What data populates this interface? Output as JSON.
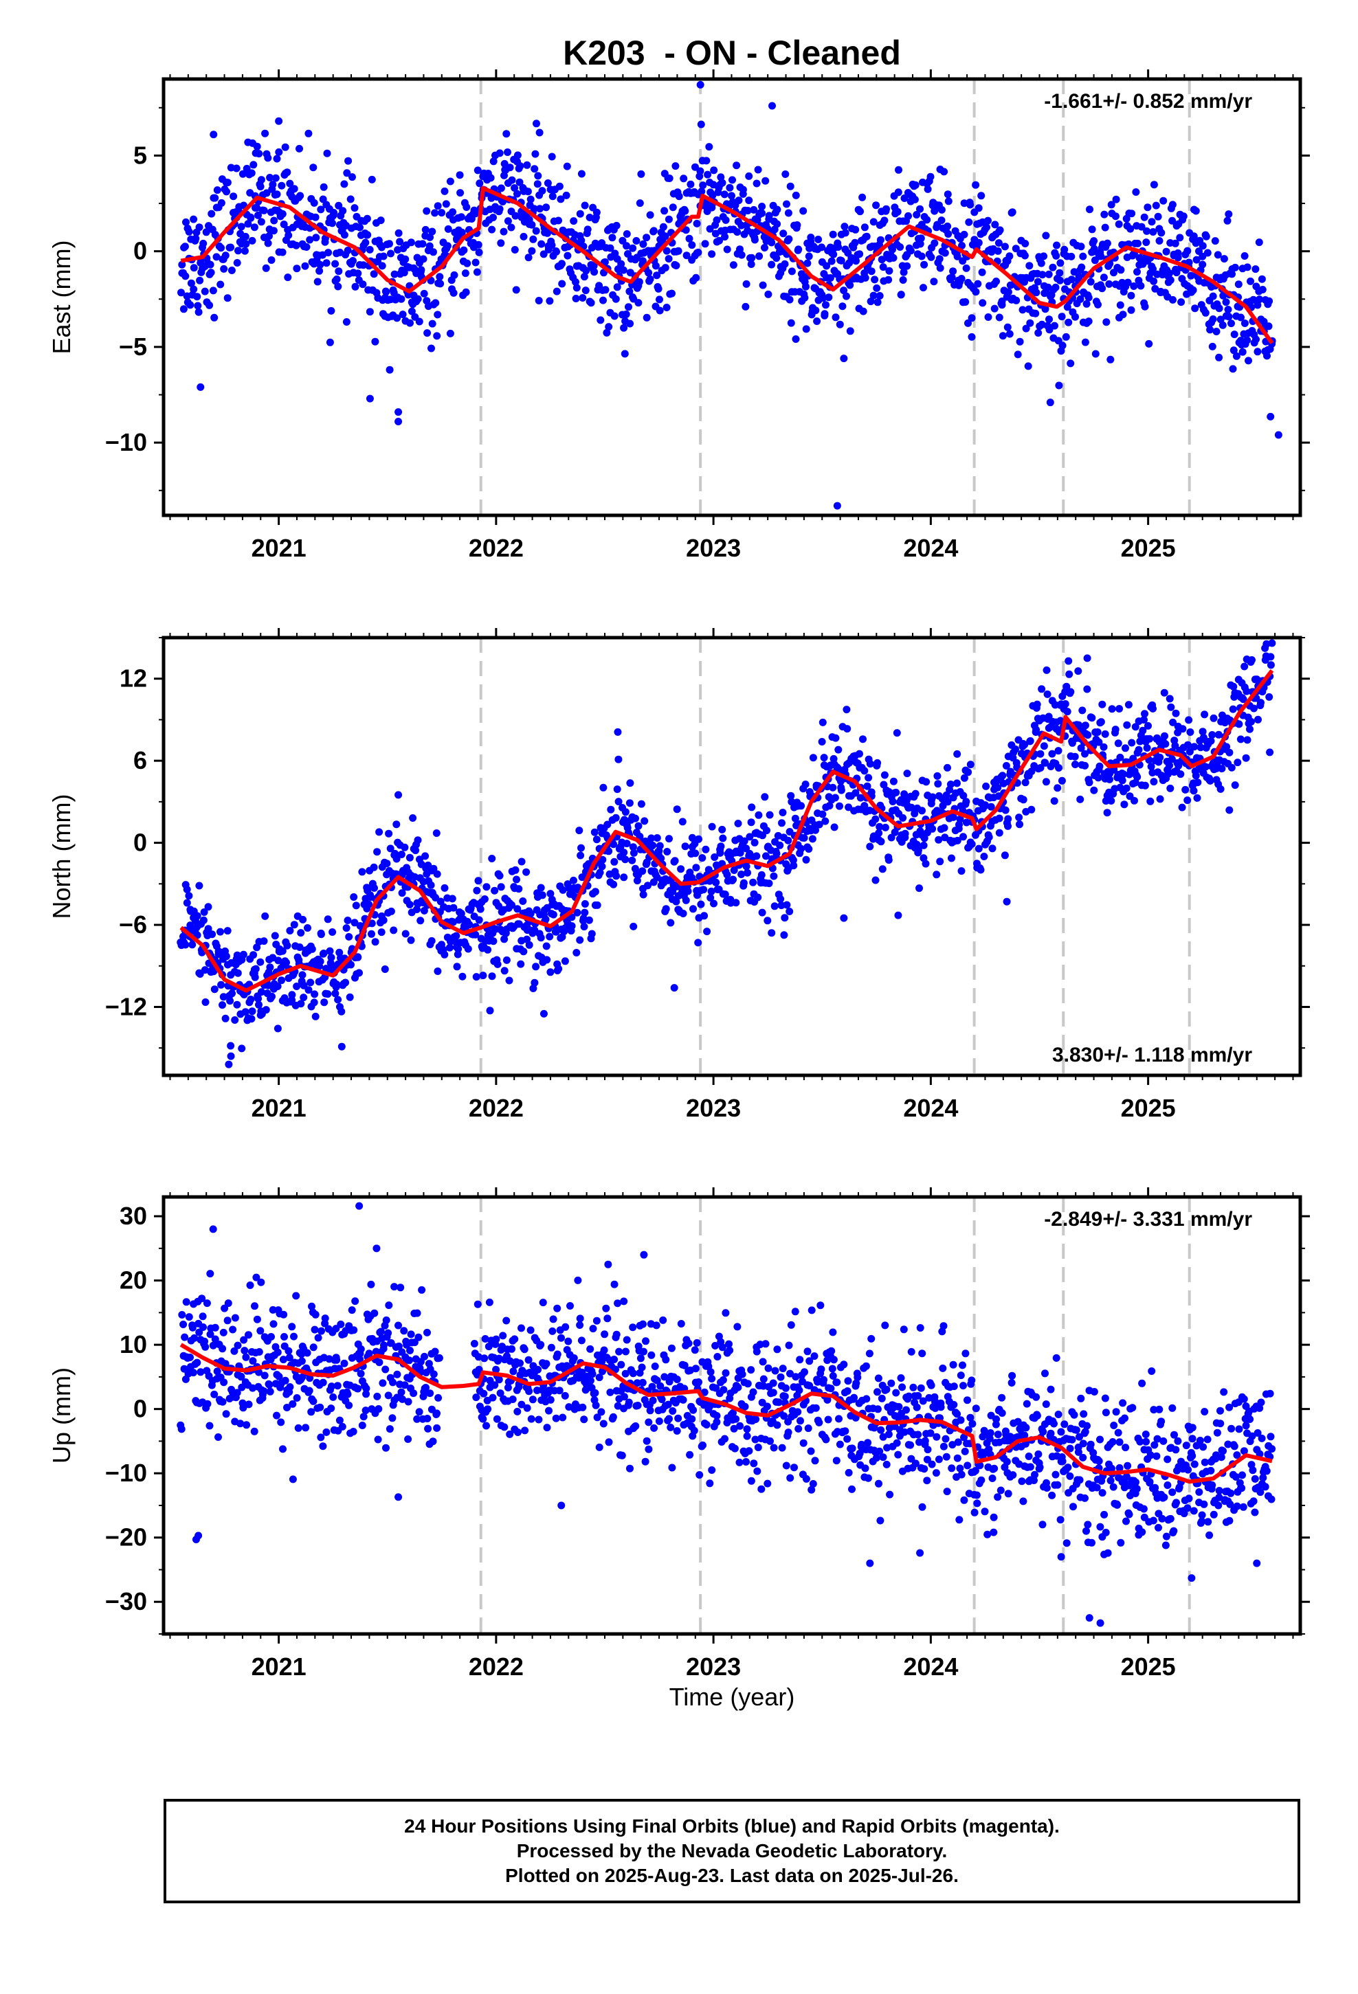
{
  "title": "K203  - ON - Cleaned",
  "xlabel": "Time (year)",
  "footer": {
    "line1": "24 Hour Positions Using Final Orbits (blue) and Rapid Orbits (magenta).",
    "line2": "Processed by the Nevada Geodetic Laboratory.",
    "line3": "Plotted on 2025-Aug-23. Last data on 2025-Jul-26."
  },
  "colors": {
    "points": "#0000ff",
    "model": "#ff0000",
    "steps": "#c8c8c8",
    "frame": "#000000"
  },
  "chart_data": [
    {
      "type": "scatter",
      "component": "East",
      "ylabel": "East (mm)",
      "rate_label": "-1.661+/- 0.852 mm/yr",
      "rate_position": "top-right",
      "xlim": [
        2020.47,
        2025.7
      ],
      "ylim": [
        -13.8,
        9.0
      ],
      "yticks": [
        5,
        0,
        -5,
        -10
      ],
      "xticks": [
        2021,
        2022,
        2023,
        2024,
        2025
      ],
      "step_lines": [
        2021.93,
        2022.94,
        2024.2,
        2024.61,
        2025.19
      ],
      "trend": {
        "rate": -1.661,
        "seasonal": [
          [
            2020.55,
            -0.5
          ],
          [
            2020.65,
            -0.3
          ],
          [
            2020.75,
            1.0
          ],
          [
            2020.9,
            2.8
          ],
          [
            2021.05,
            2.3
          ],
          [
            2021.2,
            1.0
          ],
          [
            2021.35,
            0.2
          ],
          [
            2021.5,
            -1.5
          ],
          [
            2021.6,
            -2.1
          ],
          [
            2021.75,
            -0.8
          ],
          [
            2021.85,
            0.7
          ],
          [
            2021.92,
            1.2
          ],
          [
            2021.94,
            3.3
          ],
          [
            2022.1,
            2.5
          ],
          [
            2022.25,
            1.2
          ],
          [
            2022.4,
            0.0
          ],
          [
            2022.55,
            -1.3
          ],
          [
            2022.62,
            -1.6
          ],
          [
            2022.75,
            0.0
          ],
          [
            2022.9,
            1.8
          ],
          [
            2022.93,
            1.8
          ],
          [
            2022.95,
            2.9
          ],
          [
            2023.1,
            2.0
          ],
          [
            2023.3,
            0.6
          ],
          [
            2023.45,
            -1.3
          ],
          [
            2023.55,
            -2.0
          ],
          [
            2023.7,
            -0.6
          ],
          [
            2023.9,
            1.3
          ],
          [
            2024.05,
            0.6
          ],
          [
            2024.19,
            -0.3
          ],
          [
            2024.21,
            0.1
          ],
          [
            2024.35,
            -1.2
          ],
          [
            2024.5,
            -2.7
          ],
          [
            2024.58,
            -2.9
          ],
          [
            2024.62,
            -2.6
          ],
          [
            2024.75,
            -0.9
          ],
          [
            2024.9,
            0.2
          ],
          [
            2025.05,
            -0.3
          ],
          [
            2025.18,
            -0.8
          ],
          [
            2025.3,
            -1.6
          ],
          [
            2025.45,
            -2.9
          ],
          [
            2025.57,
            -4.8
          ]
        ]
      },
      "scatter_summary": {
        "n_points": 1700,
        "scatter_sd_mm": 1.6,
        "outliers": [
          [
            2020.64,
            -7.1
          ],
          [
            2021.42,
            -7.7
          ],
          [
            2021.55,
            -8.9
          ],
          [
            2021.55,
            -8.4
          ],
          [
            2022.94,
            8.7
          ],
          [
            2023.27,
            7.6
          ],
          [
            2023.57,
            -13.3
          ],
          [
            2023.6,
            -5.6
          ],
          [
            2024.55,
            -7.9
          ],
          [
            2025.6,
            -9.6
          ],
          [
            2020.7,
            6.1
          ],
          [
            2021.0,
            6.8
          ],
          [
            2022.2,
            6.2
          ]
        ]
      }
    },
    {
      "type": "scatter",
      "component": "North",
      "ylabel": "North (mm)",
      "rate_label": "3.830+/- 1.118 mm/yr",
      "rate_position": "bottom-right",
      "xlim": [
        2020.47,
        2025.7
      ],
      "ylim": [
        -17.0,
        15.0
      ],
      "yticks": [
        12,
        6,
        0,
        -6,
        -12
      ],
      "xticks": [
        2021,
        2022,
        2023,
        2024,
        2025
      ],
      "step_lines": [
        2021.93,
        2022.94,
        2024.2,
        2024.61,
        2025.19
      ],
      "trend": {
        "rate": 3.83,
        "seasonal": [
          [
            2020.55,
            -6.2
          ],
          [
            2020.65,
            -7.5
          ],
          [
            2020.75,
            -10.0
          ],
          [
            2020.85,
            -10.8
          ],
          [
            2021.0,
            -9.6
          ],
          [
            2021.1,
            -9.0
          ],
          [
            2021.25,
            -9.7
          ],
          [
            2021.35,
            -8.0
          ],
          [
            2021.45,
            -4.2
          ],
          [
            2021.55,
            -2.5
          ],
          [
            2021.65,
            -3.5
          ],
          [
            2021.75,
            -5.8
          ],
          [
            2021.85,
            -6.6
          ],
          [
            2021.93,
            -6.2
          ],
          [
            2022.0,
            -5.8
          ],
          [
            2022.1,
            -5.3
          ],
          [
            2022.25,
            -6.1
          ],
          [
            2022.35,
            -5.0
          ],
          [
            2022.45,
            -1.5
          ],
          [
            2022.55,
            0.8
          ],
          [
            2022.65,
            0.2
          ],
          [
            2022.75,
            -1.5
          ],
          [
            2022.85,
            -3.0
          ],
          [
            2022.93,
            -2.9
          ],
          [
            2023.05,
            -1.8
          ],
          [
            2023.15,
            -1.3
          ],
          [
            2023.25,
            -1.7
          ],
          [
            2023.35,
            -0.8
          ],
          [
            2023.45,
            3.0
          ],
          [
            2023.55,
            5.2
          ],
          [
            2023.65,
            4.5
          ],
          [
            2023.75,
            2.5
          ],
          [
            2023.85,
            1.2
          ],
          [
            2024.0,
            1.6
          ],
          [
            2024.1,
            2.3
          ],
          [
            2024.19,
            1.8
          ],
          [
            2024.21,
            1.0
          ],
          [
            2024.3,
            2.4
          ],
          [
            2024.42,
            5.5
          ],
          [
            2024.52,
            8.0
          ],
          [
            2024.6,
            7.4
          ],
          [
            2024.62,
            9.2
          ],
          [
            2024.72,
            7.2
          ],
          [
            2024.82,
            5.6
          ],
          [
            2024.92,
            5.7
          ],
          [
            2025.05,
            6.8
          ],
          [
            2025.15,
            6.4
          ],
          [
            2025.2,
            5.6
          ],
          [
            2025.3,
            6.3
          ],
          [
            2025.42,
            9.5
          ],
          [
            2025.57,
            12.6
          ]
        ]
      },
      "scatter_summary": {
        "n_points": 1700,
        "scatter_sd_mm": 1.9,
        "outliers": [
          [
            2020.77,
            -16.2
          ],
          [
            2020.78,
            -15.6
          ],
          [
            2021.29,
            -14.9
          ],
          [
            2021.55,
            3.5
          ],
          [
            2022.22,
            -12.5
          ],
          [
            2022.82,
            -10.6
          ],
          [
            2022.56,
            8.1
          ],
          [
            2023.6,
            -5.5
          ],
          [
            2023.85,
            -5.3
          ],
          [
            2024.35,
            -4.3
          ],
          [
            2024.72,
            13.5
          ],
          [
            2025.57,
            14.6
          ]
        ]
      }
    },
    {
      "type": "scatter",
      "component": "Up",
      "ylabel": "Up (mm)",
      "rate_label": "-2.849+/- 3.331 mm/yr",
      "rate_position": "top-right",
      "xlim": [
        2020.47,
        2025.7
      ],
      "ylim": [
        -35.0,
        33.0
      ],
      "yticks": [
        30,
        20,
        10,
        0,
        -10,
        -20,
        -30
      ],
      "xticks": [
        2021,
        2022,
        2023,
        2024,
        2025
      ],
      "step_lines": [
        2021.93,
        2022.94,
        2024.2,
        2024.61,
        2025.19
      ],
      "trend": {
        "rate": -2.849,
        "seasonal": [
          [
            2020.55,
            10.0
          ],
          [
            2020.65,
            8.0
          ],
          [
            2020.75,
            6.3
          ],
          [
            2020.85,
            6.0
          ],
          [
            2020.95,
            6.7
          ],
          [
            2021.05,
            6.4
          ],
          [
            2021.15,
            5.4
          ],
          [
            2021.25,
            5.2
          ],
          [
            2021.35,
            6.5
          ],
          [
            2021.45,
            8.3
          ],
          [
            2021.55,
            7.7
          ],
          [
            2021.65,
            5.0
          ],
          [
            2021.75,
            3.4
          ],
          [
            2021.85,
            3.6
          ],
          [
            2021.92,
            3.9
          ],
          [
            2021.94,
            5.7
          ],
          [
            2022.05,
            5.2
          ],
          [
            2022.15,
            3.9
          ],
          [
            2022.25,
            4.2
          ],
          [
            2022.4,
            7.1
          ],
          [
            2022.5,
            6.5
          ],
          [
            2022.6,
            4.0
          ],
          [
            2022.7,
            2.2
          ],
          [
            2022.8,
            2.4
          ],
          [
            2022.93,
            2.8
          ],
          [
            2022.95,
            1.7
          ],
          [
            2023.05,
            0.8
          ],
          [
            2023.15,
            -0.6
          ],
          [
            2023.25,
            -1.0
          ],
          [
            2023.35,
            0.6
          ],
          [
            2023.45,
            2.4
          ],
          [
            2023.55,
            2.0
          ],
          [
            2023.65,
            -0.5
          ],
          [
            2023.75,
            -2.2
          ],
          [
            2023.85,
            -2.1
          ],
          [
            2023.95,
            -1.7
          ],
          [
            2024.05,
            -2.0
          ],
          [
            2024.19,
            -4.2
          ],
          [
            2024.21,
            -8.2
          ],
          [
            2024.3,
            -7.5
          ],
          [
            2024.4,
            -5.0
          ],
          [
            2024.5,
            -4.4
          ],
          [
            2024.6,
            -6.0
          ],
          [
            2024.7,
            -9.0
          ],
          [
            2024.8,
            -10.0
          ],
          [
            2024.9,
            -9.8
          ],
          [
            2025.0,
            -9.4
          ],
          [
            2025.1,
            -10.3
          ],
          [
            2025.19,
            -11.3
          ],
          [
            2025.3,
            -10.8
          ],
          [
            2025.45,
            -7.2
          ],
          [
            2025.57,
            -8.1
          ]
        ]
      },
      "scatter_summary": {
        "n_points": 1700,
        "scatter_sd_mm": 5.5,
        "outliers": [
          [
            2021.37,
            31.6
          ],
          [
            2021.45,
            25.0
          ],
          [
            2020.62,
            -20.3
          ],
          [
            2020.63,
            -19.7
          ],
          [
            2021.55,
            -13.7
          ],
          [
            2022.3,
            -15.0
          ],
          [
            2022.68,
            24.0
          ],
          [
            2023.72,
            -24.0
          ],
          [
            2023.95,
            -22.4
          ],
          [
            2024.6,
            -23.0
          ],
          [
            2024.78,
            -33.3
          ],
          [
            2024.73,
            -32.5
          ],
          [
            2025.2,
            -26.3
          ],
          [
            2025.5,
            -24.0
          ]
        ]
      }
    }
  ]
}
